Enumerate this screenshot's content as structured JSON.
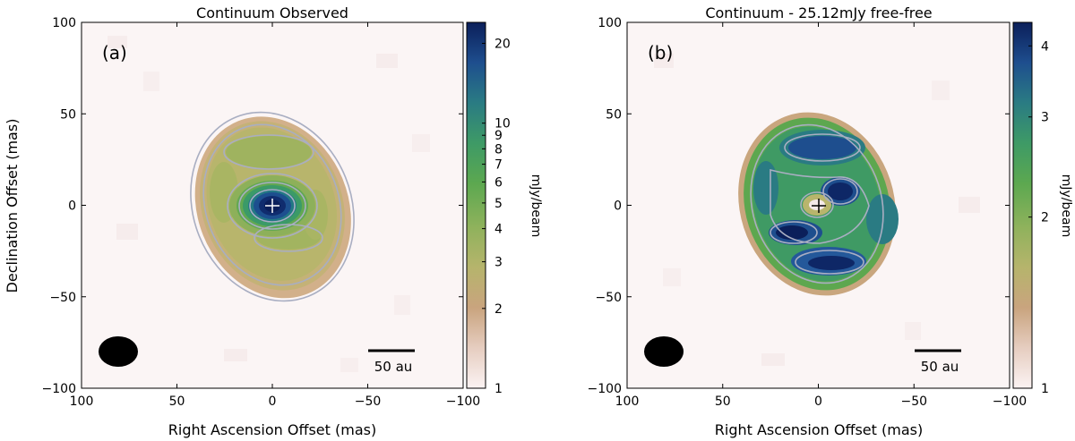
{
  "chart_data": [
    {
      "type": "heatmap",
      "panel_label": "(a)",
      "title": "Continuum Observed",
      "xlabel": "Right Ascension Offset (mas)",
      "ylabel": "Declination Offset (mas)",
      "xlim": [
        100,
        -100
      ],
      "ylim": [
        -100,
        100
      ],
      "x_ticks": [
        100,
        50,
        0,
        -50,
        -100
      ],
      "y_ticks": [
        100,
        50,
        0,
        -50,
        -100
      ],
      "x_tick_labels": [
        "100",
        "50",
        "0",
        "−50",
        "−100"
      ],
      "y_tick_labels": [
        "100",
        "50",
        "0",
        "−50",
        "−100"
      ],
      "colorbar": {
        "label": "mJy/beam",
        "scale": "log",
        "range": [
          1,
          24
        ],
        "ticks": [
          1,
          2,
          3,
          4,
          5,
          6,
          7,
          8,
          9,
          10,
          20
        ],
        "tick_labels": [
          "1",
          "2",
          "3",
          "4",
          "5",
          "6",
          "7",
          "8",
          "9",
          "10",
          "20"
        ]
      },
      "peak_mjy": 24,
      "peak_offset_mas": [
        0,
        0
      ],
      "source_extent_mas": {
        "ra_radius": 40,
        "dec_radius": 50
      },
      "marker_offset_mas": [
        0,
        0
      ],
      "beam_center_mas": [
        80,
        -80
      ],
      "beam_size_mas": {
        "ra": 21,
        "dec": 16
      },
      "scalebar": {
        "label": "50 au",
        "ra_from": -50,
        "ra_to": -75,
        "dec": -80
      }
    },
    {
      "type": "heatmap",
      "panel_label": "(b)",
      "title": "Continuum - 25.12mJy free-free",
      "xlabel": "Right Ascension Offset (mas)",
      "ylabel": "",
      "xlim": [
        100,
        -100
      ],
      "ylim": [
        -100,
        100
      ],
      "x_ticks": [
        100,
        50,
        0,
        -50,
        -100
      ],
      "y_ticks": [
        100,
        50,
        0,
        -50,
        -100
      ],
      "x_tick_labels": [
        "100",
        "50",
        "0",
        "−50",
        "−100"
      ],
      "y_tick_labels": [
        "100",
        "50",
        "0",
        "−50",
        "−100"
      ],
      "colorbar": {
        "label": "mJy/beam",
        "scale": "log",
        "range": [
          1,
          4.4
        ],
        "ticks": [
          1,
          2,
          3,
          4
        ],
        "tick_labels": [
          "1",
          "2",
          "3",
          "4"
        ]
      },
      "peak_mjy": 4.4,
      "source_extent_mas": {
        "ra_radius": 41,
        "dec_radius": 50
      },
      "marker_offset_mas": [
        0,
        0
      ],
      "beam_center_mas": [
        80,
        -80
      ],
      "beam_size_mas": {
        "ra": 21,
        "dec": 16
      },
      "scalebar": {
        "label": "50 au",
        "ra_from": -50,
        "ra_to": -75,
        "dec": -80
      }
    }
  ],
  "colors": {
    "cmap_stops": [
      "#fbf3f3",
      "#e6cdc0",
      "#c9a47e",
      "#b6b46c",
      "#8fb25c",
      "#5ca850",
      "#3e9a66",
      "#2a7b83",
      "#1e4e8e",
      "#0b1f5a"
    ],
    "contour": "#a9aec2",
    "beam": "#000000"
  }
}
